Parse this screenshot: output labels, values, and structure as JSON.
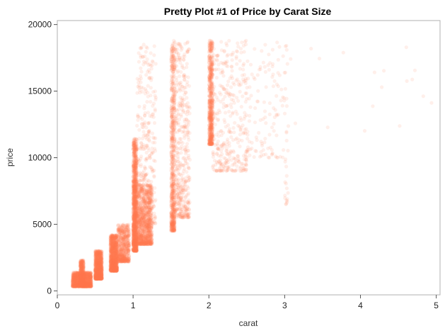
{
  "chart_data": {
    "type": "scatter",
    "title": "Pretty Plot #1 of Price by Carat Size",
    "xlabel": "carat",
    "ylabel": "price",
    "xlim": [
      0,
      5.05
    ],
    "ylim": [
      -300,
      20300
    ],
    "xticks": [
      0,
      1,
      2,
      3,
      4,
      5
    ],
    "yticks": [
      0,
      5000,
      10000,
      15000,
      20000
    ],
    "grid": false,
    "marker_color": "#FF7F50",
    "marker_opacity": 0.12,
    "point_clusters": [
      {
        "x": [
          0.2,
          0.45
        ],
        "y": [
          330,
          1400
        ],
        "count": 1400
      },
      {
        "x": [
          0.3,
          0.35
        ],
        "y": [
          400,
          2300
        ],
        "count": 500
      },
      {
        "x": [
          0.5,
          0.59
        ],
        "y": [
          900,
          3000
        ],
        "count": 1100
      },
      {
        "x": [
          0.7,
          0.79
        ],
        "y": [
          1500,
          4200
        ],
        "count": 1200
      },
      {
        "x": [
          0.8,
          0.95
        ],
        "y": [
          2200,
          5000
        ],
        "count": 600
      },
      {
        "x": [
          1.0,
          1.05
        ],
        "y": [
          3000,
          11500
        ],
        "count": 1100
      },
      {
        "x": [
          1.0,
          1.25
        ],
        "y": [
          3500,
          8000
        ],
        "count": 1300
      },
      {
        "x": [
          1.05,
          1.3
        ],
        "y": [
          5000,
          18500
        ],
        "count": 350
      },
      {
        "x": [
          1.5,
          1.55
        ],
        "y": [
          4500,
          18800
        ],
        "count": 700
      },
      {
        "x": [
          1.55,
          1.75
        ],
        "y": [
          5500,
          18800
        ],
        "count": 450
      },
      {
        "x": [
          2.0,
          2.05
        ],
        "y": [
          11000,
          18800
        ],
        "count": 650
      },
      {
        "x": [
          2.05,
          2.5
        ],
        "y": [
          9000,
          18800
        ],
        "count": 350
      },
      {
        "x": [
          2.5,
          3.0
        ],
        "y": [
          10000,
          18800
        ],
        "count": 120
      },
      {
        "x": [
          3.0,
          3.05
        ],
        "y": [
          6500,
          18700
        ],
        "count": 30
      },
      {
        "x": [
          3.05,
          5.01
        ],
        "y": [
          12000,
          18800
        ],
        "count": 18
      }
    ]
  }
}
